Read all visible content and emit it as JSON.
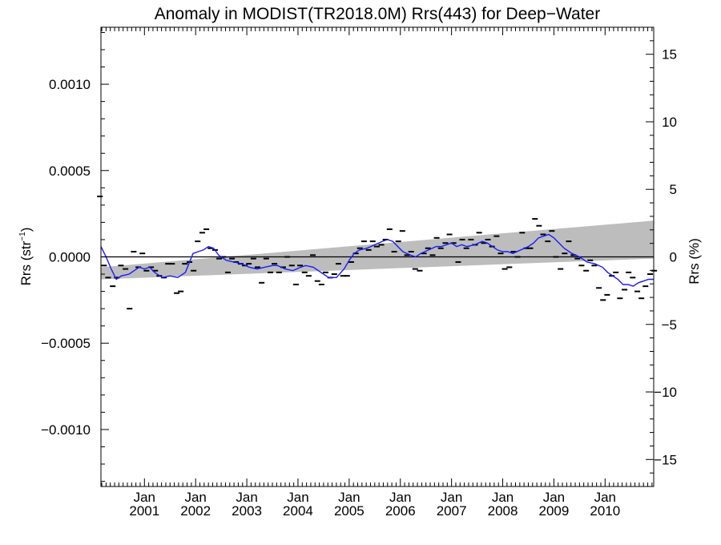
{
  "chart_data": {
    "type": "line",
    "title": "Anomaly in MODIST(TR2018.0M) Rrs(443) for Deep−Water",
    "ylabel_left": {
      "base": "Rrs (str",
      "sup": "−1",
      "close": ")"
    },
    "ylabel_right": "Rrs (%)",
    "xlabel": "",
    "xlim": [
      2000.15,
      2010.95
    ],
    "ylim_left": [
      -0.00133,
      0.00133
    ],
    "ylim_right": [
      -17,
      17
    ],
    "grid": false,
    "legend": "none",
    "colors": {
      "running_mean": "#1a1aff",
      "points": "#000000",
      "band": "#bdbdbd",
      "zero_line": "#000000"
    },
    "x_ticks": [
      {
        "x": 2001.0,
        "month": "Jan",
        "year": "2001"
      },
      {
        "x": 2002.0,
        "month": "Jan",
        "year": "2002"
      },
      {
        "x": 2003.0,
        "month": "Jan",
        "year": "2003"
      },
      {
        "x": 2004.0,
        "month": "Jan",
        "year": "2004"
      },
      {
        "x": 2005.0,
        "month": "Jan",
        "year": "2005"
      },
      {
        "x": 2006.0,
        "month": "Jan",
        "year": "2006"
      },
      {
        "x": 2007.0,
        "month": "Jan",
        "year": "2007"
      },
      {
        "x": 2008.0,
        "month": "Jan",
        "year": "2008"
      },
      {
        "x": 2009.0,
        "month": "Jan",
        "year": "2009"
      },
      {
        "x": 2010.0,
        "month": "Jan",
        "year": "2010"
      }
    ],
    "y_ticks_left": [
      {
        "v": 0.001,
        "label": "0.0010"
      },
      {
        "v": 0.0005,
        "label": "0.0005"
      },
      {
        "v": 0.0,
        "label": "0.0000"
      },
      {
        "v": -0.0005,
        "label": "−0.0005"
      },
      {
        "v": -0.001,
        "label": "−0.0010"
      }
    ],
    "y_ticks_right": [
      {
        "v": 15,
        "label": "15"
      },
      {
        "v": 10,
        "label": "10"
      },
      {
        "v": 5,
        "label": "5"
      },
      {
        "v": 0,
        "label": "0"
      },
      {
        "v": -5,
        "label": "−5"
      },
      {
        "v": -10,
        "label": "−10"
      },
      {
        "v": -15,
        "label": "−15"
      }
    ],
    "band": {
      "upper": [
        [
          2000.15,
          -6e-05
        ],
        [
          2010.95,
          0.00021
        ]
      ],
      "lower": [
        [
          2000.15,
          -0.00013
        ],
        [
          2010.95,
          -1e-05
        ]
      ]
    },
    "zero_line": 0.0,
    "monthly_points": [
      [
        2000.13,
        0.00035
      ],
      [
        2000.21,
        -5e-05
      ],
      [
        2000.29,
        -0.00012
      ],
      [
        2000.38,
        -0.00017
      ],
      [
        2000.46,
        -0.00012
      ],
      [
        2000.54,
        -5e-05
      ],
      [
        2000.63,
        -7e-05
      ],
      [
        2000.71,
        -0.0003
      ],
      [
        2000.79,
        3e-05
      ],
      [
        2000.88,
        -6e-05
      ],
      [
        2000.96,
        2e-05
      ],
      [
        2001.04,
        -8e-05
      ],
      [
        2001.13,
        -6e-05
      ],
      [
        2001.21,
        -8e-05
      ],
      [
        2001.29,
        -0.00011
      ],
      [
        2001.38,
        -0.00012
      ],
      [
        2001.46,
        -4e-05
      ],
      [
        2001.54,
        -4e-05
      ],
      [
        2001.63,
        -0.00021
      ],
      [
        2001.71,
        -0.0002
      ],
      [
        2001.79,
        -4e-05
      ],
      [
        2001.88,
        -3e-05
      ],
      [
        2001.96,
        -8e-05
      ],
      [
        2002.04,
        9e-05
      ],
      [
        2002.13,
        0.00014
      ],
      [
        2002.21,
        0.00016
      ],
      [
        2002.29,
        5e-05
      ],
      [
        2002.38,
        4e-05
      ],
      [
        2002.46,
        -1e-05
      ],
      [
        2002.54,
        0.0
      ],
      [
        2002.63,
        -9e-05
      ],
      [
        2002.71,
        -1e-05
      ],
      [
        2002.79,
        -3e-05
      ],
      [
        2002.88,
        -4e-05
      ],
      [
        2002.96,
        -5e-05
      ],
      [
        2003.04,
        -4e-05
      ],
      [
        2003.13,
        -1e-05
      ],
      [
        2003.21,
        -6e-05
      ],
      [
        2003.29,
        -0.00015
      ],
      [
        2003.38,
        -1e-05
      ],
      [
        2003.46,
        -9e-05
      ],
      [
        2003.54,
        -4e-05
      ],
      [
        2003.63,
        -9e-05
      ],
      [
        2003.71,
        -6e-05
      ],
      [
        2003.79,
        0.0
      ],
      [
        2003.88,
        -5e-05
      ],
      [
        2003.96,
        -0.00016
      ],
      [
        2004.04,
        -5e-05
      ],
      [
        2004.13,
        -9e-05
      ],
      [
        2004.21,
        -0.00011
      ],
      [
        2004.29,
        1e-05
      ],
      [
        2004.38,
        -0.00014
      ],
      [
        2004.46,
        -0.00016
      ],
      [
        2004.54,
        -9e-05
      ],
      [
        2004.63,
        -0.00012
      ],
      [
        2004.71,
        -0.0001
      ],
      [
        2004.79,
        -4e-05
      ],
      [
        2004.88,
        -0.00011
      ],
      [
        2004.96,
        -0.00011
      ],
      [
        2005.04,
        -3e-05
      ],
      [
        2005.13,
        2e-05
      ],
      [
        2005.21,
        5e-05
      ],
      [
        2005.29,
        9e-05
      ],
      [
        2005.38,
        4e-05
      ],
      [
        2005.46,
        9e-05
      ],
      [
        2005.54,
        6e-05
      ],
      [
        2005.63,
        7e-05
      ],
      [
        2005.71,
        0.0001
      ],
      [
        2005.79,
        0.00016
      ],
      [
        2005.88,
        3e-05
      ],
      [
        2005.96,
        9e-05
      ],
      [
        2006.04,
        0.00015
      ],
      [
        2006.13,
        1e-05
      ],
      [
        2006.21,
        3e-05
      ],
      [
        2006.29,
        -7e-05
      ],
      [
        2006.38,
        -8e-05
      ],
      [
        2006.46,
        2e-05
      ],
      [
        2006.54,
        5e-05
      ],
      [
        2006.63,
        1e-05
      ],
      [
        2006.71,
        0.00011
      ],
      [
        2006.79,
        5e-05
      ],
      [
        2006.88,
        8e-05
      ],
      [
        2006.96,
        0.00013
      ],
      [
        2007.04,
        8e-05
      ],
      [
        2007.13,
        -3e-05
      ],
      [
        2007.21,
        0.0001
      ],
      [
        2007.29,
        5e-05
      ],
      [
        2007.38,
        0.0001
      ],
      [
        2007.46,
        7e-05
      ],
      [
        2007.54,
        0.00014
      ],
      [
        2007.63,
        8e-05
      ],
      [
        2007.71,
        0.0001
      ],
      [
        2007.79,
        6e-05
      ],
      [
        2007.88,
        0.00012
      ],
      [
        2007.96,
        2e-05
      ],
      [
        2008.04,
        -7e-05
      ],
      [
        2008.13,
        -6e-05
      ],
      [
        2008.21,
        3e-05
      ],
      [
        2008.29,
        0.0
      ],
      [
        2008.38,
        0.00014
      ],
      [
        2008.46,
        5e-05
      ],
      [
        2008.54,
        5e-05
      ],
      [
        2008.63,
        0.00022
      ],
      [
        2008.71,
        0.00018
      ],
      [
        2008.79,
        0.00013
      ],
      [
        2008.88,
        9e-05
      ],
      [
        2008.96,
        0.00015
      ],
      [
        2009.04,
        0.0
      ],
      [
        2009.13,
        -7e-05
      ],
      [
        2009.21,
        2e-05
      ],
      [
        2009.29,
        9e-05
      ],
      [
        2009.38,
        1e-05
      ],
      [
        2009.46,
        -1e-05
      ],
      [
        2009.54,
        -5e-05
      ],
      [
        2009.63,
        -8e-05
      ],
      [
        2009.71,
        -2e-05
      ],
      [
        2009.79,
        -5e-05
      ],
      [
        2009.88,
        -0.00018
      ],
      [
        2009.96,
        -0.00025
      ],
      [
        2010.04,
        -0.00022
      ],
      [
        2010.13,
        -0.00011
      ],
      [
        2010.21,
        -9e-05
      ],
      [
        2010.29,
        -0.00024
      ],
      [
        2010.38,
        -0.00019
      ],
      [
        2010.46,
        -9e-05
      ],
      [
        2010.54,
        -0.00012
      ],
      [
        2010.63,
        -0.0002
      ],
      [
        2010.71,
        -0.00024
      ],
      [
        2010.79,
        -0.00017
      ],
      [
        2010.88,
        -0.0001
      ],
      [
        2010.96,
        -8e-05
      ]
    ],
    "running_mean": [
      [
        2000.15,
        6e-05
      ],
      [
        2000.25,
        0.0
      ],
      [
        2000.35,
        -7e-05
      ],
      [
        2000.45,
        -0.00013
      ],
      [
        2000.55,
        -0.00011
      ],
      [
        2000.7,
        -0.0001
      ],
      [
        2000.8,
        -8e-05
      ],
      [
        2000.9,
        -6e-05
      ],
      [
        2001.0,
        -7e-05
      ],
      [
        2001.1,
        -6e-05
      ],
      [
        2001.2,
        -9e-05
      ],
      [
        2001.35,
        -0.00012
      ],
      [
        2001.5,
        -0.00011
      ],
      [
        2001.65,
        -0.00012
      ],
      [
        2001.8,
        -9e-05
      ],
      [
        2001.95,
        2e-05
      ],
      [
        2002.05,
        3e-05
      ],
      [
        2002.15,
        4e-05
      ],
      [
        2002.25,
        6e-05
      ],
      [
        2002.35,
        5e-05
      ],
      [
        2002.45,
        1e-05
      ],
      [
        2002.6,
        -2e-05
      ],
      [
        2002.75,
        -3e-05
      ],
      [
        2002.9,
        -4e-05
      ],
      [
        2003.05,
        -6e-05
      ],
      [
        2003.2,
        -7e-05
      ],
      [
        2003.35,
        -6e-05
      ],
      [
        2003.5,
        -5e-05
      ],
      [
        2003.6,
        -5e-05
      ],
      [
        2003.75,
        -7e-05
      ],
      [
        2003.9,
        -8e-05
      ],
      [
        2004.05,
        -6e-05
      ],
      [
        2004.15,
        -5e-05
      ],
      [
        2004.3,
        -6e-05
      ],
      [
        2004.45,
        -9e-05
      ],
      [
        2004.6,
        -0.00012
      ],
      [
        2004.75,
        -0.00012
      ],
      [
        2004.9,
        -7e-05
      ],
      [
        2005.0,
        -2e-05
      ],
      [
        2005.1,
        2e-05
      ],
      [
        2005.2,
        4e-05
      ],
      [
        2005.35,
        5e-05
      ],
      [
        2005.5,
        7e-05
      ],
      [
        2005.65,
        9e-05
      ],
      [
        2005.75,
        0.0001
      ],
      [
        2005.85,
        9e-05
      ],
      [
        2005.95,
        6e-05
      ],
      [
        2006.05,
        3e-05
      ],
      [
        2006.2,
        1e-05
      ],
      [
        2006.3,
        0.0
      ],
      [
        2006.4,
        2e-05
      ],
      [
        2006.55,
        4e-05
      ],
      [
        2006.7,
        6e-05
      ],
      [
        2006.8,
        6e-05
      ],
      [
        2006.9,
        7e-05
      ],
      [
        2007.0,
        8e-05
      ],
      [
        2007.1,
        6e-05
      ],
      [
        2007.2,
        7e-05
      ],
      [
        2007.3,
        6e-05
      ],
      [
        2007.45,
        7e-05
      ],
      [
        2007.6,
        9e-05
      ],
      [
        2007.7,
        8e-05
      ],
      [
        2007.8,
        6e-05
      ],
      [
        2007.9,
        4e-05
      ],
      [
        2008.0,
        3e-05
      ],
      [
        2008.1,
        3e-05
      ],
      [
        2008.2,
        2e-05
      ],
      [
        2008.35,
        4e-05
      ],
      [
        2008.5,
        6e-05
      ],
      [
        2008.6,
        8e-05
      ],
      [
        2008.7,
        0.00011
      ],
      [
        2008.8,
        0.00012
      ],
      [
        2008.9,
        0.00013
      ],
      [
        2009.0,
        0.00011
      ],
      [
        2009.1,
        8e-05
      ],
      [
        2009.2,
        5e-05
      ],
      [
        2009.35,
        2e-05
      ],
      [
        2009.5,
        0.0
      ],
      [
        2009.65,
        -3e-05
      ],
      [
        2009.8,
        -4e-05
      ],
      [
        2009.95,
        -6e-05
      ],
      [
        2010.05,
        -9e-05
      ],
      [
        2010.15,
        -0.00011
      ],
      [
        2010.25,
        -0.00013
      ],
      [
        2010.35,
        -0.00016
      ],
      [
        2010.45,
        -0.00016
      ],
      [
        2010.55,
        -0.00017
      ],
      [
        2010.65,
        -0.00015
      ],
      [
        2010.75,
        -0.00014
      ],
      [
        2010.85,
        -0.00013
      ],
      [
        2010.95,
        -0.00013
      ]
    ]
  }
}
